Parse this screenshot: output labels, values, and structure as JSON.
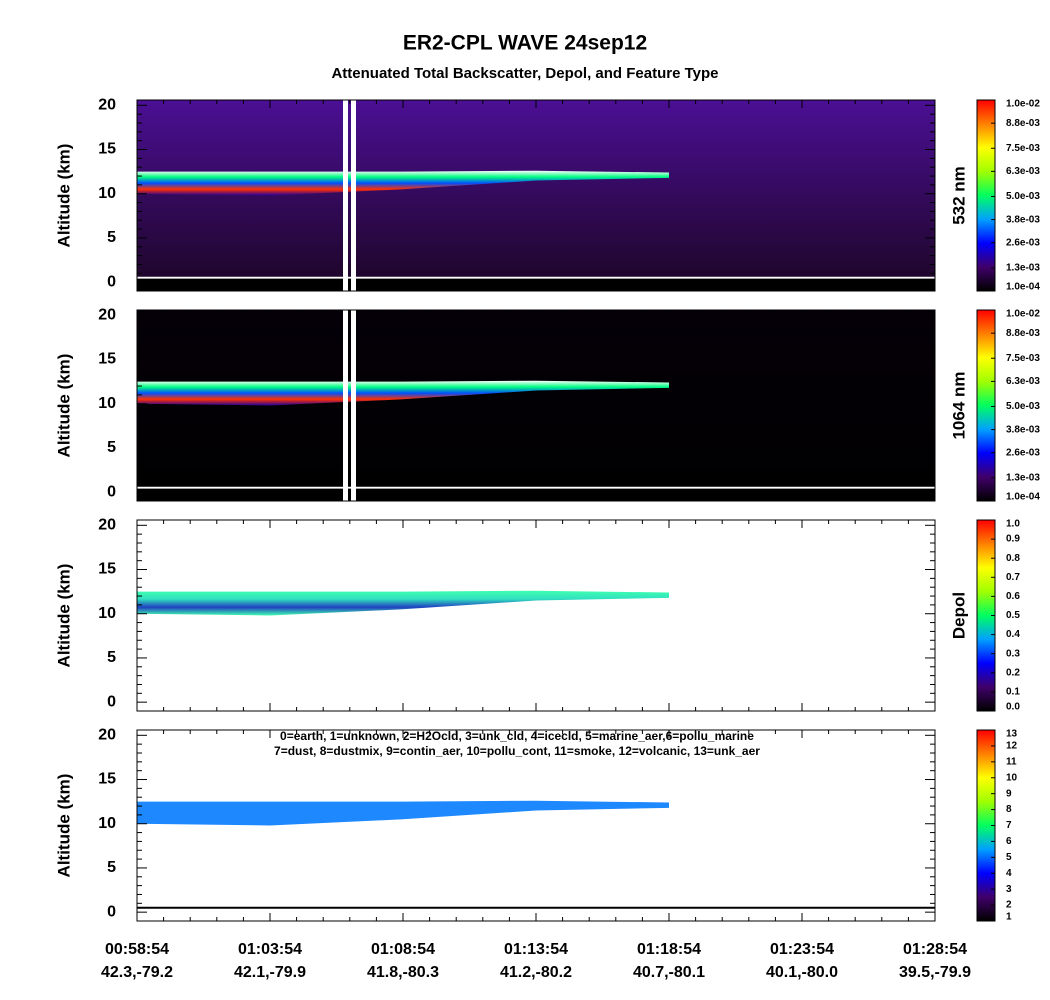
{
  "title": "ER2-CPL WAVE 24sep12",
  "subtitle": "Attenuated Total Backscatter, Depol, and Feature Type",
  "x_axis": {
    "times": [
      "00:58:54",
      "01:03:54",
      "01:08:54",
      "01:13:54",
      "01:18:54",
      "01:23:54",
      "01:28:54"
    ],
    "locations": [
      "42.3,-79.2",
      "42.1,-79.9",
      "41.8,-80.3",
      "41.2,-80.2",
      "40.7,-80.1",
      "40.1,-80.0",
      "39.5,-79.9"
    ]
  },
  "cloud_layer": {
    "top": [
      12.5,
      12.5,
      12.5,
      12.6,
      12.4,
      null,
      null
    ],
    "base": [
      10,
      9.8,
      10.5,
      11.5,
      11.8,
      null,
      null
    ]
  },
  "surface_altitude": 0.5,
  "chart_data": [
    {
      "type": "curtain",
      "side_label": "532 nm",
      "ylabel": "Altitude (km)",
      "ylim": [
        -1,
        20.6
      ],
      "yticks": [
        0,
        5,
        10,
        15,
        20
      ],
      "background": [
        "#1c0524",
        "#4b0f94"
      ],
      "layer_colors": [
        "#ffffff",
        "#00ff80",
        "#0050ff",
        "#ff3000",
        "#2000a0"
      ],
      "ground_color": "#ffffff",
      "data_gap": true,
      "colorbar": {
        "lim": [
          0.0001,
          0.01
        ],
        "colors": [
          "#000000",
          "#40006a",
          "#0000ff",
          "#00a0ff",
          "#00ff60",
          "#a0ff00",
          "#ffff00",
          "#ff8000",
          "#ff0000"
        ],
        "ticks": [
          {
            "value": 0.0001,
            "label": "1.0e-04"
          },
          {
            "value": 0.0013,
            "label": "1.3e-03"
          },
          {
            "value": 0.0026,
            "label": "2.6e-03"
          },
          {
            "value": 0.0038,
            "label": "3.8e-03"
          },
          {
            "value": 0.005,
            "label": "5.0e-03"
          },
          {
            "value": 0.0063,
            "label": "6.3e-03"
          },
          {
            "value": 0.0075,
            "label": "7.5e-03"
          },
          {
            "value": 0.0088,
            "label": "8.8e-03"
          },
          {
            "value": 0.01,
            "label": "1.0e-02"
          }
        ]
      }
    },
    {
      "type": "curtain",
      "side_label": "1064 nm",
      "ylabel": "Altitude (km)",
      "ylim": [
        -1,
        20.6
      ],
      "yticks": [
        0,
        5,
        10,
        15,
        20
      ],
      "background": [
        "#000000",
        "#050008"
      ],
      "layer_colors": [
        "#ffffff",
        "#00ff80",
        "#0050ff",
        "#ff3000",
        "#2000a0"
      ],
      "ground_color": "#ffffff",
      "data_gap": true,
      "colorbar": {
        "lim": [
          0.0001,
          0.01
        ],
        "colors": [
          "#000000",
          "#40006a",
          "#0000ff",
          "#00a0ff",
          "#00ff60",
          "#a0ff00",
          "#ffff00",
          "#ff8000",
          "#ff0000"
        ],
        "ticks": [
          {
            "value": 0.0001,
            "label": "1.0e-04"
          },
          {
            "value": 0.0013,
            "label": "1.3e-03"
          },
          {
            "value": 0.0026,
            "label": "2.6e-03"
          },
          {
            "value": 0.0038,
            "label": "3.8e-03"
          },
          {
            "value": 0.005,
            "label": "5.0e-03"
          },
          {
            "value": 0.0063,
            "label": "6.3e-03"
          },
          {
            "value": 0.0075,
            "label": "7.5e-03"
          },
          {
            "value": 0.0088,
            "label": "8.8e-03"
          },
          {
            "value": 0.01,
            "label": "1.0e-02"
          }
        ]
      }
    },
    {
      "type": "curtain",
      "side_label": "Depol",
      "ylabel": "Altitude (km)",
      "ylim": [
        -1,
        20.6
      ],
      "yticks": [
        0,
        5,
        10,
        15,
        20
      ],
      "background": [
        "#ffffff",
        "#ffffff"
      ],
      "layer_colors": [
        "#40ffb0",
        "#30e0c0",
        "#2040c0",
        "#40ffb0"
      ],
      "colorbar": {
        "lim": [
          0,
          1
        ],
        "colors": [
          "#000000",
          "#40006a",
          "#0000ff",
          "#00a0ff",
          "#00ff60",
          "#a0ff00",
          "#ffff00",
          "#ff8000",
          "#ff0000"
        ],
        "ticks": [
          {
            "value": 0,
            "label": "0.0"
          },
          0.1,
          0.2,
          0.3,
          0.4,
          0.5,
          0.6,
          0.7,
          0.8,
          0.9,
          {
            "value": 1,
            "label": "1.0"
          }
        ]
      }
    },
    {
      "type": "curtain",
      "ylabel": "Altitude (km)",
      "ylim": [
        -1,
        20.6
      ],
      "yticks": [
        0,
        5,
        10,
        15,
        20
      ],
      "background": [
        "#ffffff",
        "#ffffff"
      ],
      "layer_colors": [
        "#1e88ff"
      ],
      "ground_color": "#000000",
      "legend_lines": [
        "0=earth, 1=unknown, 2=H2Ocld, 3=unk_cld, 4=icecld, 5=marine_aer,6=pollu_marine",
        "7=dust, 8=dustmix, 9=contin_aer, 10=pollu_cont, 11=smoke, 12=volcanic, 13=unk_aer"
      ],
      "colorbar": {
        "lim": [
          1,
          13
        ],
        "colors": [
          "#000000",
          "#40006a",
          "#0000ff",
          "#00a0ff",
          "#00ff60",
          "#a0ff00",
          "#ffff00",
          "#ff8000",
          "#ff0000"
        ],
        "ticks": [
          1,
          2,
          3,
          4,
          5,
          6,
          7,
          8,
          9,
          10,
          11,
          12,
          13
        ]
      }
    }
  ]
}
